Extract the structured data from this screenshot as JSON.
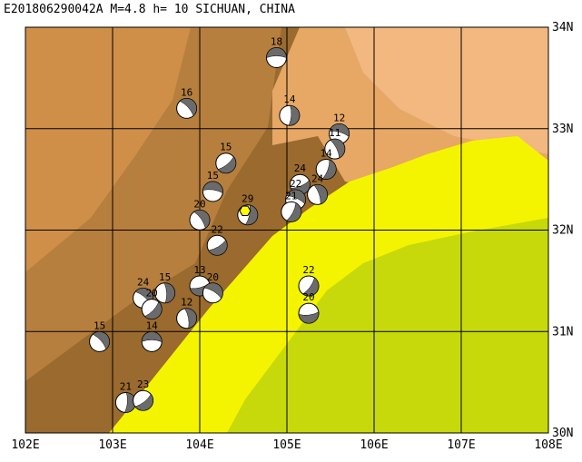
{
  "title": "E201806290042A M=4.8 h= 10 SICHUAN, CHINA",
  "map": {
    "lon_range": [
      102,
      108
    ],
    "lat_range": [
      30,
      34
    ],
    "lon_ticks": [
      "102E",
      "103E",
      "104E",
      "105E",
      "106E",
      "107E",
      "108E"
    ],
    "lat_ticks": [
      "30N",
      "31N",
      "32N",
      "33N",
      "34N"
    ],
    "colors": {
      "high": "#9a6a2e",
      "upper": "#b77f3e",
      "mid": "#cf8f48",
      "lower": "#e7a765",
      "low": "#f2b87f",
      "plain": "#f4f400",
      "basin": "#c7d90a",
      "grid": "#000000",
      "beachball_dark": "#6b6b6b",
      "epicenter": "#ffff00"
    }
  },
  "mechanisms": [
    {
      "label": "18",
      "lon": 104.88,
      "lat": 33.7
    },
    {
      "label": "16",
      "lon": 103.85,
      "lat": 33.2
    },
    {
      "label": "14",
      "lon": 105.03,
      "lat": 33.13
    },
    {
      "label": "15",
      "lon": 104.3,
      "lat": 32.66
    },
    {
      "label": "15",
      "lon": 104.15,
      "lat": 32.38
    },
    {
      "label": "20",
      "lon": 104.0,
      "lat": 32.1
    },
    {
      "label": "29",
      "lon": 104.55,
      "lat": 32.15
    },
    {
      "label": "22",
      "lon": 104.2,
      "lat": 31.85
    },
    {
      "label": "12",
      "lon": 105.6,
      "lat": 32.95
    },
    {
      "label": "11",
      "lon": 105.55,
      "lat": 32.8
    },
    {
      "label": "14",
      "lon": 105.45,
      "lat": 32.6
    },
    {
      "label": "24",
      "lon": 105.15,
      "lat": 32.45
    },
    {
      "label": "22",
      "lon": 105.1,
      "lat": 32.3
    },
    {
      "label": "24",
      "lon": 105.35,
      "lat": 32.35
    },
    {
      "label": "21",
      "lon": 105.05,
      "lat": 32.18
    },
    {
      "label": "13",
      "lon": 104.0,
      "lat": 31.45
    },
    {
      "label": "20",
      "lon": 104.15,
      "lat": 31.38
    },
    {
      "label": "12",
      "lon": 103.85,
      "lat": 31.13
    },
    {
      "label": "22",
      "lon": 105.25,
      "lat": 31.45
    },
    {
      "label": "20",
      "lon": 105.25,
      "lat": 31.18
    },
    {
      "label": "24",
      "lon": 103.35,
      "lat": 31.33
    },
    {
      "label": "15",
      "lon": 103.6,
      "lat": 31.38
    },
    {
      "label": "20",
      "lon": 103.45,
      "lat": 31.22
    },
    {
      "label": "14",
      "lon": 103.45,
      "lat": 30.9
    },
    {
      "label": "15",
      "lon": 102.85,
      "lat": 30.9
    },
    {
      "label": "21",
      "lon": 103.15,
      "lat": 30.3
    },
    {
      "label": "23",
      "lon": 103.35,
      "lat": 30.32
    }
  ],
  "epicenter": {
    "lon": 104.52,
    "lat": 32.19
  }
}
